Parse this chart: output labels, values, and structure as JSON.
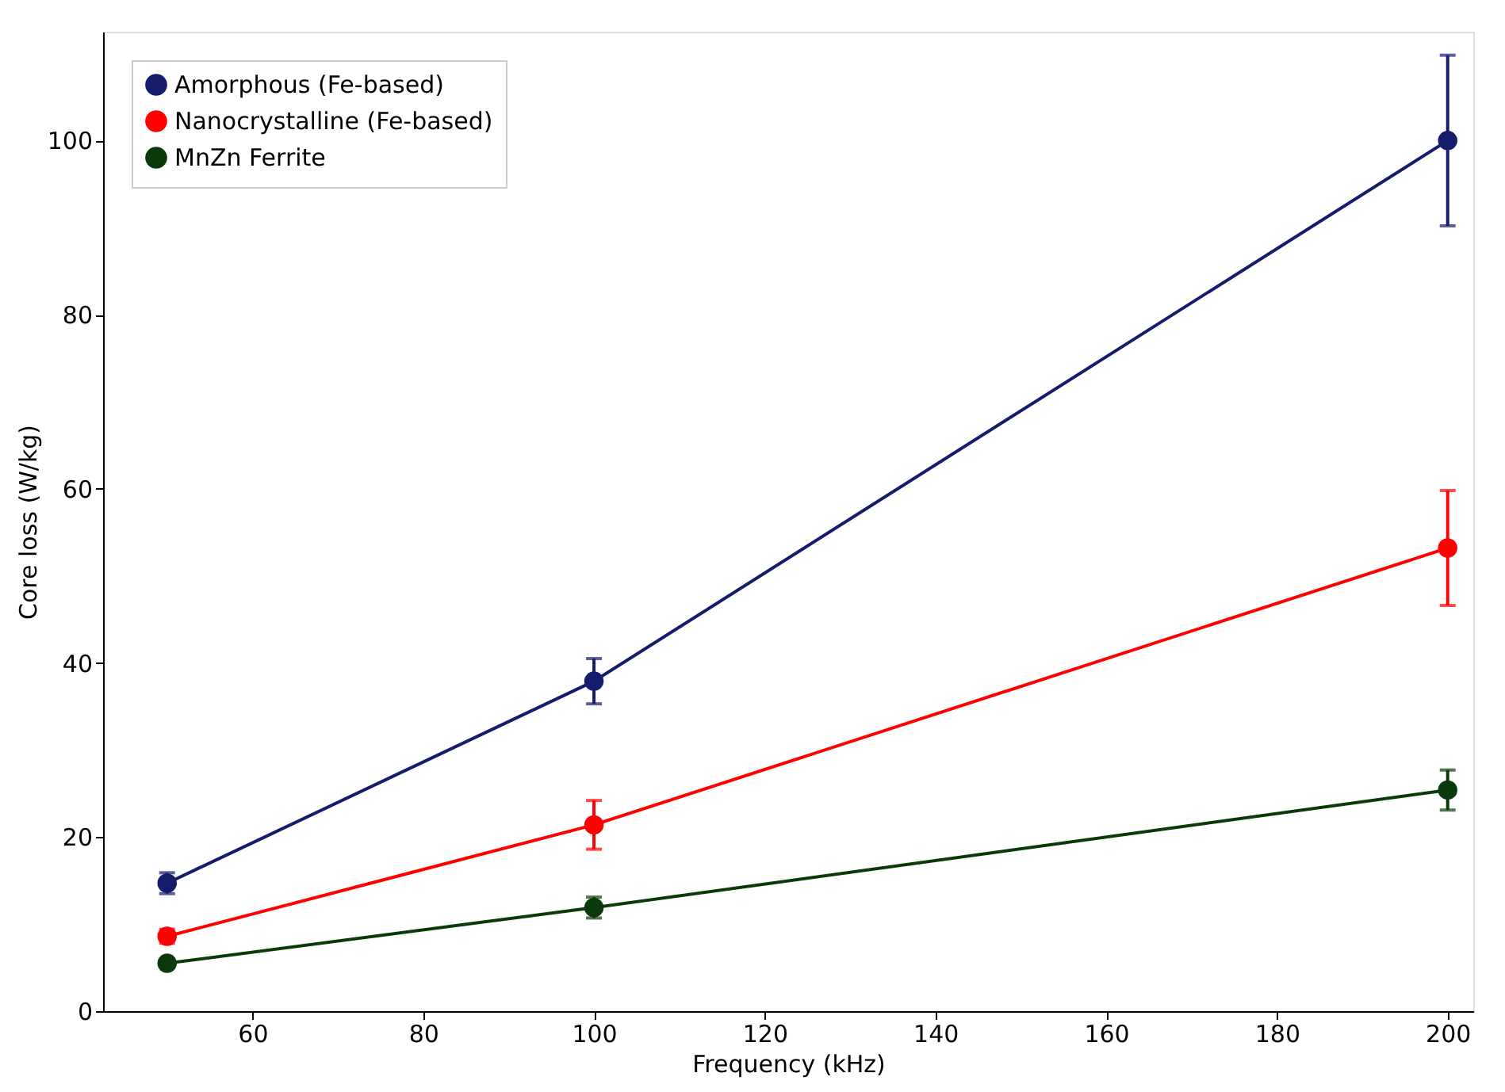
{
  "chart_data": {
    "type": "line",
    "xlabel": "Frequency (kHz)",
    "ylabel": "Core loss (W/kg)",
    "x": [
      50,
      100,
      200
    ],
    "series": [
      {
        "name": "Amorphous (Fe-based)",
        "color": "#141c6b",
        "values": [
          14.7,
          37.9,
          100
        ],
        "errors": [
          1.2,
          2.6,
          9.8
        ]
      },
      {
        "name": "Nanocrystalline (Fe-based)",
        "color": "#ff0000",
        "values": [
          8.6,
          21.4,
          53.2
        ],
        "errors": [
          0.8,
          2.8,
          6.6
        ]
      },
      {
        "name": "MnZn Ferrite",
        "color": "#0a3a0a",
        "values": [
          5.5,
          11.9,
          25.4
        ],
        "errors": [
          0.5,
          1.2,
          2.3
        ]
      }
    ],
    "xlim": [
      42.5,
      203
    ],
    "xticks": [
      60,
      80,
      100,
      120,
      140,
      160,
      180,
      200
    ],
    "ylim": [
      0,
      112.5
    ],
    "yticks": [
      0,
      20,
      40,
      60,
      80,
      100
    ],
    "marker": "circle",
    "line_style": "solid",
    "legend": "top left",
    "grid": false
  }
}
